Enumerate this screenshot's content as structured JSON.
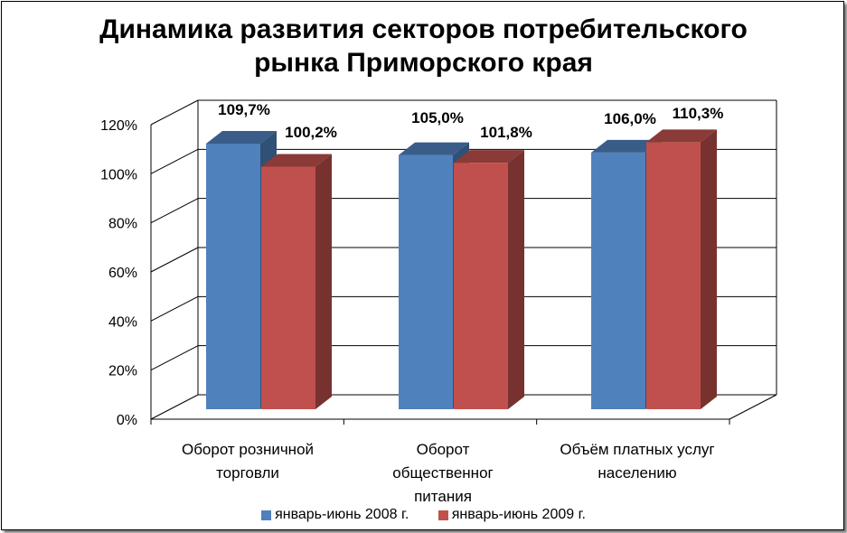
{
  "chart_data": {
    "type": "bar",
    "title_lines": [
      "Динамика развития секторов потребительского",
      "рынка Приморского края"
    ],
    "categories": [
      [
        "Оборот розничной",
        "торговли"
      ],
      [
        "Оборот",
        "общественног",
        "питания"
      ],
      [
        "Объём платных услуг",
        "населению"
      ]
    ],
    "series": [
      {
        "name": "январь-июнь 2008 г.",
        "color": "#4F81BD",
        "values": [
          109.7,
          105.0,
          106.0
        ],
        "labels": [
          "109,7%",
          "105,0%",
          "106,0%"
        ]
      },
      {
        "name": "январь-июнь 2009 г.",
        "color": "#C0504D",
        "values": [
          100.2,
          101.8,
          110.3
        ],
        "labels": [
          "100,2%",
          "101,8%",
          "110,3%"
        ]
      }
    ],
    "yticks": [
      "0%",
      "20%",
      "40%",
      "60%",
      "80%",
      "100%",
      "120%"
    ],
    "ylim": [
      0,
      120
    ],
    "grid": true,
    "legend_position": "bottom",
    "style": "3d-column"
  }
}
